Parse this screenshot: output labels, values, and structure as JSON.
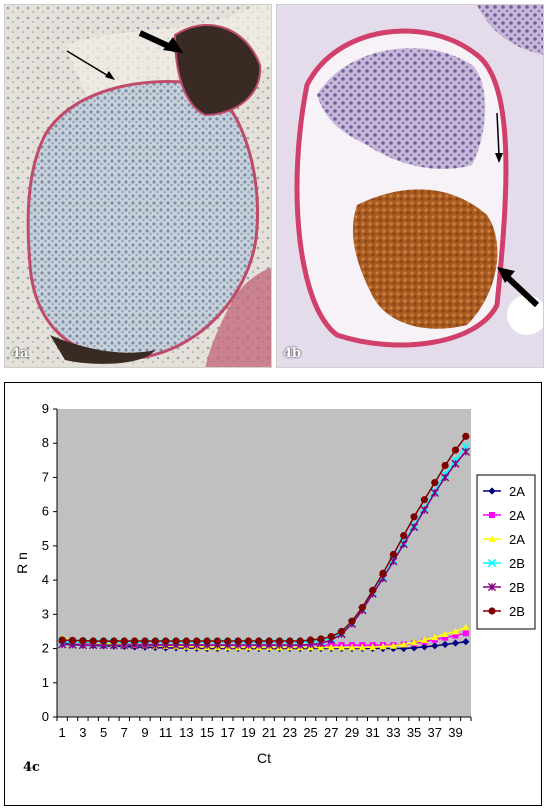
{
  "panels": {
    "a_label": "4a",
    "b_label": "4b",
    "c_label": "4c"
  },
  "chart_data": {
    "type": "line",
    "xlabel": "Ct",
    "ylabel": "R n",
    "xlim": [
      1,
      40
    ],
    "ylim": [
      0,
      9
    ],
    "x_tick_labels": [
      1,
      3,
      5,
      7,
      9,
      11,
      13,
      15,
      17,
      19,
      21,
      23,
      25,
      27,
      29,
      31,
      33,
      35,
      37,
      39
    ],
    "y_ticks": [
      0,
      1,
      2,
      3,
      4,
      5,
      6,
      7,
      8,
      9
    ],
    "grid": false,
    "plot_background": "#c0c0c0",
    "legend_position": "right",
    "x": [
      1,
      2,
      3,
      4,
      5,
      6,
      7,
      8,
      9,
      10,
      11,
      12,
      13,
      14,
      15,
      16,
      17,
      18,
      19,
      20,
      21,
      22,
      23,
      24,
      25,
      26,
      27,
      28,
      29,
      30,
      31,
      32,
      33,
      34,
      35,
      36,
      37,
      38,
      39,
      40
    ],
    "series": [
      {
        "name": "2A",
        "color": "#000080",
        "marker": "diamond",
        "values": [
          2.15,
          2.12,
          2.1,
          2.09,
          2.08,
          2.07,
          2.06,
          2.05,
          2.04,
          2.03,
          2.02,
          2.02,
          2.01,
          2.01,
          2.0,
          2.0,
          2.0,
          2.0,
          2.0,
          2.0,
          2.0,
          2.0,
          2.0,
          2.0,
          2.0,
          2.0,
          2.0,
          2.0,
          2.0,
          2.0,
          2.0,
          2.0,
          2.0,
          2.0,
          2.02,
          2.05,
          2.08,
          2.12,
          2.16,
          2.2
        ]
      },
      {
        "name": "2A",
        "color": "#ff00ff",
        "marker": "square",
        "values": [
          2.2,
          2.18,
          2.16,
          2.15,
          2.14,
          2.13,
          2.13,
          2.12,
          2.12,
          2.12,
          2.11,
          2.11,
          2.11,
          2.11,
          2.1,
          2.1,
          2.1,
          2.1,
          2.1,
          2.1,
          2.1,
          2.1,
          2.1,
          2.1,
          2.1,
          2.1,
          2.1,
          2.1,
          2.1,
          2.1,
          2.1,
          2.1,
          2.1,
          2.12,
          2.15,
          2.2,
          2.26,
          2.32,
          2.38,
          2.45
        ]
      },
      {
        "name": "2A",
        "color": "#ffff00",
        "marker": "triangle",
        "values": [
          2.3,
          2.25,
          2.2,
          2.17,
          2.15,
          2.13,
          2.11,
          2.1,
          2.09,
          2.08,
          2.07,
          2.06,
          2.05,
          2.05,
          2.04,
          2.04,
          2.03,
          2.03,
          2.03,
          2.03,
          2.03,
          2.03,
          2.03,
          2.03,
          2.03,
          2.03,
          2.03,
          2.03,
          2.03,
          2.03,
          2.04,
          2.06,
          2.08,
          2.12,
          2.18,
          2.25,
          2.33,
          2.42,
          2.5,
          2.62
        ]
      },
      {
        "name": "2B",
        "color": "#00ffff",
        "marker": "x",
        "values": [
          2.2,
          2.19,
          2.18,
          2.18,
          2.18,
          2.18,
          2.18,
          2.18,
          2.18,
          2.18,
          2.18,
          2.18,
          2.18,
          2.18,
          2.18,
          2.18,
          2.18,
          2.18,
          2.18,
          2.18,
          2.18,
          2.18,
          2.18,
          2.18,
          2.2,
          2.22,
          2.3,
          2.45,
          2.75,
          3.15,
          3.65,
          4.1,
          4.6,
          5.1,
          5.6,
          6.1,
          6.6,
          7.1,
          7.5,
          7.9
        ]
      },
      {
        "name": "2B",
        "color": "#800080",
        "marker": "star",
        "values": [
          2.12,
          2.11,
          2.1,
          2.1,
          2.1,
          2.1,
          2.1,
          2.1,
          2.1,
          2.1,
          2.1,
          2.1,
          2.1,
          2.1,
          2.1,
          2.1,
          2.1,
          2.1,
          2.1,
          2.1,
          2.1,
          2.1,
          2.1,
          2.1,
          2.12,
          2.15,
          2.25,
          2.42,
          2.72,
          3.12,
          3.6,
          4.05,
          4.55,
          5.05,
          5.55,
          6.05,
          6.55,
          7.0,
          7.4,
          7.75
        ]
      },
      {
        "name": "2B",
        "color": "#800000",
        "marker": "circle",
        "values": [
          2.25,
          2.24,
          2.23,
          2.22,
          2.22,
          2.22,
          2.22,
          2.22,
          2.22,
          2.22,
          2.22,
          2.22,
          2.22,
          2.22,
          2.22,
          2.22,
          2.22,
          2.22,
          2.22,
          2.22,
          2.22,
          2.22,
          2.22,
          2.22,
          2.25,
          2.28,
          2.35,
          2.5,
          2.8,
          3.2,
          3.7,
          4.2,
          4.75,
          5.3,
          5.85,
          6.35,
          6.85,
          7.35,
          7.8,
          8.2
        ]
      }
    ]
  }
}
